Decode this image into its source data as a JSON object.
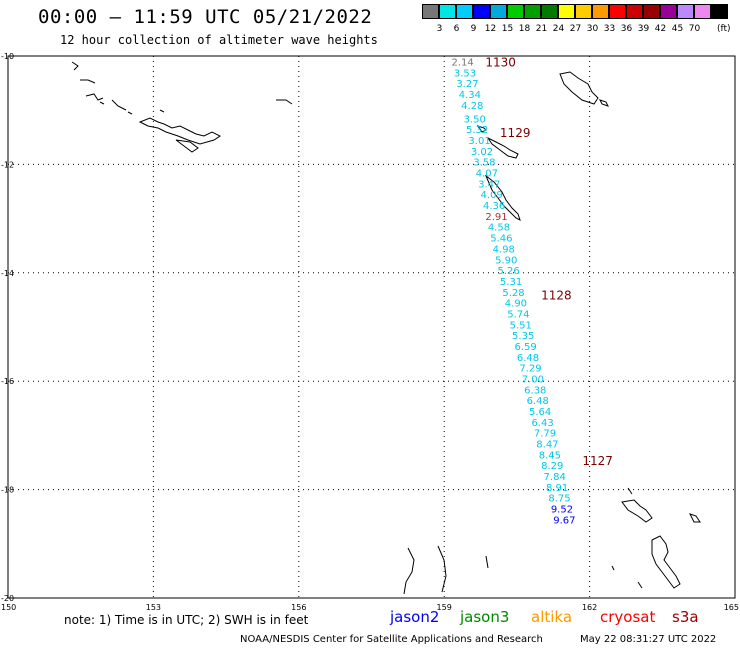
{
  "header": {
    "title": "00:00 – 11:59 UTC 05/21/2022",
    "subtitle": "12 hour collection of altimeter wave heights"
  },
  "color_scale": {
    "unit": "(ft)",
    "swatches": [
      "#777777",
      "#00e5e5",
      "#00ccff",
      "#0000ff",
      "#00aadd",
      "#00cc00",
      "#00a000",
      "#007a00",
      "#ffff00",
      "#ffcc00",
      "#ff9900",
      "#ff0000",
      "#cc0000",
      "#990000",
      "#990099",
      "#bb88ff",
      "#ee88ee",
      "#000000"
    ],
    "labels": [
      "3",
      "6",
      "9",
      "12",
      "15",
      "18",
      "21",
      "24",
      "27",
      "30",
      "33",
      "36",
      "39",
      "42",
      "45",
      "70"
    ]
  },
  "axes": {
    "lat_labels": [
      "-10",
      "-12",
      "-14",
      "-16",
      "-18",
      "-20"
    ],
    "lon_labels": [
      "150",
      "153",
      "156",
      "159",
      "162",
      "165"
    ]
  },
  "wave_heights": [
    {
      "v": "2.14",
      "lat": -10.1,
      "lon": 159.15,
      "c": "#777777"
    },
    {
      "v": "3.53",
      "lat": -10.3,
      "lon": 159.2,
      "c": "#00c8e8"
    },
    {
      "v": "3.27",
      "lat": -10.5,
      "lon": 159.25,
      "c": "#00c8e8"
    },
    {
      "v": "4.34",
      "lat": -10.7,
      "lon": 159.3,
      "c": "#00c8e8"
    },
    {
      "v": "4.28",
      "lat": -10.9,
      "lon": 159.35,
      "c": "#00c8e8"
    },
    {
      "v": "3.50",
      "lat": -11.15,
      "lon": 159.4,
      "c": "#00c8e8"
    },
    {
      "v": "5.32",
      "lat": -11.35,
      "lon": 159.45,
      "c": "#00c8e8"
    },
    {
      "v": "3.01",
      "lat": -11.55,
      "lon": 159.5,
      "c": "#00c8e8"
    },
    {
      "v": "3.02",
      "lat": -11.75,
      "lon": 159.55,
      "c": "#00c8e8"
    },
    {
      "v": "3.58",
      "lat": -11.95,
      "lon": 159.6,
      "c": "#00c8e8"
    },
    {
      "v": "4.07",
      "lat": -12.15,
      "lon": 159.65,
      "c": "#00c8e8"
    },
    {
      "v": "3.47",
      "lat": -12.35,
      "lon": 159.7,
      "c": "#00c8e8"
    },
    {
      "v": "4.09",
      "lat": -12.55,
      "lon": 159.75,
      "c": "#00c8e8"
    },
    {
      "v": "4.36",
      "lat": -12.75,
      "lon": 159.8,
      "c": "#00c8e8"
    },
    {
      "v": "2.91",
      "lat": -12.95,
      "lon": 159.85,
      "c": "#aa3333"
    },
    {
      "v": "4.58",
      "lat": -13.15,
      "lon": 159.9,
      "c": "#00c8e8"
    },
    {
      "v": "5.46",
      "lat": -13.35,
      "lon": 159.95,
      "c": "#00c8e8"
    },
    {
      "v": "4.98",
      "lat": -13.55,
      "lon": 160.0,
      "c": "#00c8e8"
    },
    {
      "v": "5.90",
      "lat": -13.75,
      "lon": 160.05,
      "c": "#00c8e8"
    },
    {
      "v": "5.26",
      "lat": -13.95,
      "lon": 160.1,
      "c": "#00c8e8"
    },
    {
      "v": "5.31",
      "lat": -14.15,
      "lon": 160.15,
      "c": "#00c8e8"
    },
    {
      "v": "5.28",
      "lat": -14.35,
      "lon": 160.2,
      "c": "#00c8e8"
    },
    {
      "v": "4.90",
      "lat": -14.55,
      "lon": 160.25,
      "c": "#00c8e8"
    },
    {
      "v": "5.74",
      "lat": -14.75,
      "lon": 160.3,
      "c": "#00c8e8"
    },
    {
      "v": "5.51",
      "lat": -14.95,
      "lon": 160.35,
      "c": "#00c8e8"
    },
    {
      "v": "5.35",
      "lat": -15.15,
      "lon": 160.4,
      "c": "#00c8e8"
    },
    {
      "v": "6.59",
      "lat": -15.35,
      "lon": 160.45,
      "c": "#00c8e8"
    },
    {
      "v": "6.48",
      "lat": -15.55,
      "lon": 160.5,
      "c": "#00c8e8"
    },
    {
      "v": "7.29",
      "lat": -15.75,
      "lon": 160.55,
      "c": "#00c8e8"
    },
    {
      "v": "7.00",
      "lat": -15.95,
      "lon": 160.6,
      "c": "#00c8e8"
    },
    {
      "v": "6.38",
      "lat": -16.15,
      "lon": 160.65,
      "c": "#00c8e8"
    },
    {
      "v": "6.48",
      "lat": -16.35,
      "lon": 160.7,
      "c": "#00c8e8"
    },
    {
      "v": "5.64",
      "lat": -16.55,
      "lon": 160.75,
      "c": "#00c8e8"
    },
    {
      "v": "6.43",
      "lat": -16.75,
      "lon": 160.8,
      "c": "#00c8e8"
    },
    {
      "v": "7.79",
      "lat": -16.95,
      "lon": 160.85,
      "c": "#00c8e8"
    },
    {
      "v": "8.47",
      "lat": -17.15,
      "lon": 160.9,
      "c": "#00c8e8"
    },
    {
      "v": "8.45",
      "lat": -17.35,
      "lon": 160.95,
      "c": "#00c8e8"
    },
    {
      "v": "8.29",
      "lat": -17.55,
      "lon": 161.0,
      "c": "#00c8e8"
    },
    {
      "v": "7.84",
      "lat": -17.75,
      "lon": 161.05,
      "c": "#00c8e8"
    },
    {
      "v": "8.91",
      "lat": -17.95,
      "lon": 161.1,
      "c": "#00c8e8"
    },
    {
      "v": "8.75",
      "lat": -18.15,
      "lon": 161.15,
      "c": "#00c8e8"
    },
    {
      "v": "9.52",
      "lat": -18.35,
      "lon": 161.2,
      "c": "#0000ff"
    },
    {
      "v": "9.67",
      "lat": -18.55,
      "lon": 161.25,
      "c": "#0000ff"
    }
  ],
  "pass_labels": [
    {
      "t": "1130",
      "lat": -10.1,
      "lon": 159.85
    },
    {
      "t": "1129",
      "lat": -11.4,
      "lon": 160.15
    },
    {
      "t": "1128",
      "lat": -14.4,
      "lon": 161.0
    },
    {
      "t": "1127",
      "lat": -17.45,
      "lon": 161.85
    }
  ],
  "footer": {
    "note": "note: 1) Time is in UTC; 2) SWH is in feet",
    "satellites": [
      {
        "name": "jason2",
        "color": "#0000ff"
      },
      {
        "name": "jason3",
        "color": "#008800"
      },
      {
        "name": "altika",
        "color": "#ff9900"
      },
      {
        "name": "cryosat",
        "color": "#ff0000"
      },
      {
        "name": "s3a",
        "color": "#990000"
      }
    ],
    "credit": "NOAA/NESDIS Center for Satellite Applications and Research",
    "timestamp": "May 22 08:31:27 UTC 2022"
  }
}
